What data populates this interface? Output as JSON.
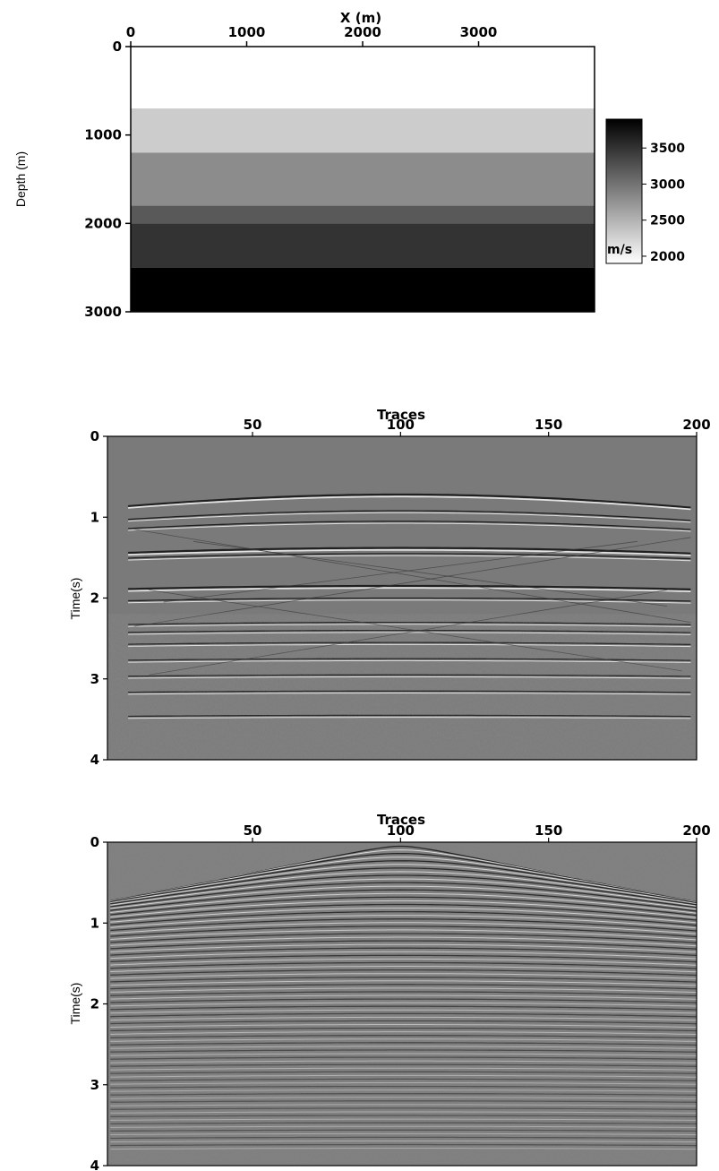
{
  "chart_data": [
    {
      "type": "heatmap",
      "title": "",
      "xlabel": "X (m)",
      "ylabel": "Depth (m)",
      "xlim": [
        0,
        4000
      ],
      "ylim": [
        3000,
        0
      ],
      "x_ticks": [
        "0",
        "1000",
        "2000",
        "3000"
      ],
      "y_ticks": [
        "0",
        "1000",
        "2000",
        "3000"
      ],
      "layers": [
        {
          "top": 0,
          "bottom": 700,
          "velocity": 1900
        },
        {
          "top": 700,
          "bottom": 1200,
          "velocity": 2300
        },
        {
          "top": 1200,
          "bottom": 1800,
          "velocity": 2800
        },
        {
          "top": 1800,
          "bottom": 2000,
          "velocity": 3200
        },
        {
          "top": 2000,
          "bottom": 2500,
          "velocity": 3500
        },
        {
          "top": 2500,
          "bottom": 3000,
          "velocity": 3900
        }
      ],
      "colorbar": {
        "label": "m/s",
        "range": [
          1900,
          3900
        ],
        "ticks": [
          "2000",
          "2500",
          "3000",
          "3500"
        ],
        "colormap": "gray-reversed"
      }
    },
    {
      "type": "heatmap",
      "title": "",
      "xlabel": "Traces",
      "ylabel": "Time(s)",
      "xlim": [
        1,
        200
      ],
      "ylim": [
        4,
        0
      ],
      "x_ticks": [
        "50",
        "100",
        "150",
        "200"
      ],
      "y_ticks": [
        "0",
        "1",
        "2",
        "3",
        "4"
      ],
      "events": {
        "hyperbolic_t0": [
          0.72,
          0.92,
          1.05,
          1.38,
          1.45,
          1.85,
          2.0,
          2.3,
          2.4,
          2.55,
          2.75,
          2.95,
          3.15,
          3.45
        ],
        "apex_trace": 100,
        "linear_noise": true
      }
    },
    {
      "type": "heatmap",
      "title": "",
      "xlabel": "Traces",
      "ylabel": "Time(s)",
      "xlim": [
        1,
        200
      ],
      "ylim": [
        4,
        0
      ],
      "x_ticks": [
        "50",
        "100",
        "150",
        "200"
      ],
      "y_ticks": [
        "0",
        "1",
        "2",
        "3",
        "4"
      ],
      "events": {
        "description_dense": true,
        "apex_trace": 100
      }
    }
  ]
}
